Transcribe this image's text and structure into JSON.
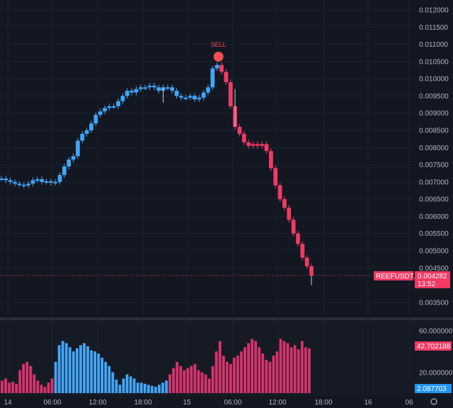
{
  "symbol": "REEFUSDT.P",
  "last_price_label": "0.004282",
  "countdown_label": "13:52",
  "signal_label": "SELL",
  "volume_right_labels": [
    "60.000000",
    "42.702188",
    "20.000000",
    "2.087703"
  ],
  "colors": {
    "background": "#131722",
    "up": "#42a5f5",
    "down": "#f23a64",
    "sell_marker": "#f24e55",
    "grid": "#1e2230",
    "volume_up": "#42a5f5",
    "volume_down": "#d6336c"
  },
  "chart_data": [
    {
      "type": "line",
      "panel": "price",
      "y_ticks": [
        "0.012000",
        "0.011500",
        "0.011000",
        "0.010500",
        "0.010000",
        "0.009500",
        "0.009000",
        "0.008500",
        "0.008000",
        "0.007500",
        "0.007000",
        "0.006500",
        "0.006000",
        "0.005500",
        "0.005000",
        "0.004500",
        "0.003500"
      ],
      "ylim": [
        0.00325,
        0.01225
      ],
      "x_ticks": [
        "14",
        "06:00",
        "12:00",
        "18:00",
        "15",
        "06:00",
        "12:00",
        "18:00",
        "16",
        "06"
      ],
      "series": [
        {
          "color_segments": "up-until-sell-then-down",
          "values": [
            0.0071,
            0.00705,
            0.007,
            0.00695,
            0.00692,
            0.0069,
            0.00695,
            0.00705,
            0.00708,
            0.007,
            0.00702,
            0.00698,
            0.007,
            0.0072,
            0.00745,
            0.00765,
            0.00775,
            0.0082,
            0.0084,
            0.0085,
            0.0087,
            0.00895,
            0.00905,
            0.00915,
            0.0092,
            0.0092,
            0.00935,
            0.0095,
            0.00965,
            0.0096,
            0.0097,
            0.00975,
            0.00975,
            0.0098,
            0.00975,
            0.00965,
            0.00975,
            0.00975,
            0.00965,
            0.0095,
            0.00945,
            0.00945,
            0.0095,
            0.0094,
            0.00945,
            0.0096,
            0.00975,
            0.0103,
            0.0104,
            0.0102,
            0.0099,
            0.0092,
            0.0086,
            0.0084,
            0.00815,
            0.00805,
            0.0081,
            0.00805,
            0.0081,
            0.0079,
            0.0074,
            0.0069,
            0.0065,
            0.00625,
            0.0059,
            0.0055,
            0.0052,
            0.0048,
            0.00455,
            0.00428
          ]
        }
      ],
      "last_value": 0.004282,
      "annotations": [
        {
          "text": "SELL",
          "near_value": 0.0104
        }
      ]
    },
    {
      "type": "bar",
      "panel": "volume",
      "y_ticks": [
        "60.000000",
        "20.000000"
      ],
      "ylim": [
        0,
        70
      ],
      "last_value": 42.702188,
      "secondary_value": 2.087703,
      "values": [
        12,
        14,
        10,
        11,
        9,
        22,
        28,
        30,
        26,
        18,
        12,
        8,
        6,
        10,
        14,
        30,
        46,
        50,
        48,
        44,
        40,
        43,
        46,
        48,
        45,
        41,
        40,
        38,
        34,
        30,
        26,
        20,
        13,
        8,
        14,
        18,
        16,
        14,
        10,
        10,
        9,
        8,
        7,
        6,
        8,
        10,
        12,
        18,
        24,
        30,
        26,
        22,
        24,
        26,
        28,
        22,
        20,
        18,
        14,
        26,
        40,
        50,
        36,
        30,
        28,
        34,
        36,
        40,
        44,
        48,
        52,
        50,
        44,
        38,
        32,
        30,
        36,
        40,
        52,
        50,
        48,
        44,
        46,
        42,
        50,
        44,
        43
      ],
      "colors_split_index": 47
    }
  ]
}
